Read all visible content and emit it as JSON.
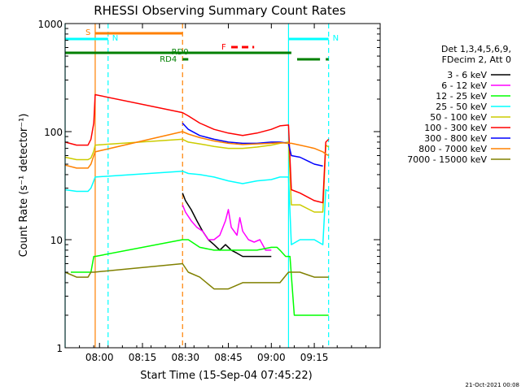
{
  "chart_data": {
    "type": "line",
    "title": "RHESSI Observing Summary Count Rates",
    "xlabel": "Start Time (15-Sep-04 07:45:22)",
    "ylabel": "Count Rate (s⁻¹ detector⁻¹)",
    "yscale": "log",
    "ylim": [
      1,
      1000
    ],
    "xlim_minutes": [
      -12,
      98
    ],
    "x_ticks": [
      {
        "label": "08:00",
        "minutes": 0
      },
      {
        "label": "08:15",
        "minutes": 15
      },
      {
        "label": "08:30",
        "minutes": 30
      },
      {
        "label": "08:45",
        "minutes": 45
      },
      {
        "label": "09:00",
        "minutes": 60
      },
      {
        "label": "09:15",
        "minutes": 75
      }
    ],
    "y_ticks": [
      {
        "label": "1",
        "value": 1
      },
      {
        "label": "10",
        "value": 10
      },
      {
        "label": "100",
        "value": 100
      },
      {
        "label": "1000",
        "value": 1000
      }
    ],
    "legend_header": [
      "Det 1,3,4,5,6,9,",
      "FDecim 2, Att 0"
    ],
    "legend_position": "right",
    "series": [
      {
        "name": "3 - 6 keV",
        "color": "#000000",
        "points": [
          [
            29,
            27
          ],
          [
            30,
            23
          ],
          [
            32,
            19
          ],
          [
            34,
            15
          ],
          [
            36,
            12
          ],
          [
            38,
            10
          ],
          [
            40,
            9
          ],
          [
            42,
            8
          ],
          [
            44,
            9
          ],
          [
            46,
            8
          ],
          [
            48,
            7.5
          ],
          [
            50,
            7
          ],
          [
            52,
            7
          ],
          [
            55,
            7
          ],
          [
            58,
            7
          ],
          [
            60,
            7
          ]
        ]
      },
      {
        "name": "6 - 12 keV",
        "color": "#ff00ff",
        "points": [
          [
            29,
            21
          ],
          [
            30,
            18
          ],
          [
            32,
            15
          ],
          [
            34,
            13
          ],
          [
            36,
            12
          ],
          [
            38,
            10
          ],
          [
            40,
            10
          ],
          [
            42,
            11
          ],
          [
            44,
            15
          ],
          [
            45,
            19
          ],
          [
            46,
            13
          ],
          [
            48,
            11
          ],
          [
            49,
            16
          ],
          [
            50,
            12
          ],
          [
            52,
            10
          ],
          [
            54,
            9.5
          ],
          [
            56,
            10
          ],
          [
            58,
            8
          ],
          [
            60,
            8
          ]
        ]
      },
      {
        "name": "12 - 25 keV",
        "color": "#00ff00",
        "points": [
          [
            -10,
            5
          ],
          [
            -5,
            5
          ],
          [
            -3,
            5
          ],
          [
            -2,
            7
          ],
          [
            -1.5,
            7
          ],
          [
            29,
            10
          ],
          [
            31,
            10
          ],
          [
            35,
            8.5
          ],
          [
            40,
            8
          ],
          [
            45,
            8
          ],
          [
            50,
            8
          ],
          [
            55,
            8
          ],
          [
            60,
            8.5
          ],
          [
            62,
            8.5
          ],
          [
            63,
            8
          ],
          [
            65,
            7
          ],
          [
            66.5,
            7
          ],
          [
            68,
            2
          ],
          [
            72,
            2
          ],
          [
            77,
            2
          ],
          [
            80,
            2
          ]
        ]
      },
      {
        "name": "25 - 50 keV",
        "color": "#00ffff",
        "points": [
          [
            -12,
            29
          ],
          [
            -8,
            28
          ],
          [
            -4,
            28
          ],
          [
            -3,
            30
          ],
          [
            -2,
            35
          ],
          [
            -1.5,
            38
          ],
          [
            29,
            43
          ],
          [
            31,
            41
          ],
          [
            35,
            40
          ],
          [
            40,
            38
          ],
          [
            45,
            35
          ],
          [
            50,
            33
          ],
          [
            55,
            35
          ],
          [
            60,
            36
          ],
          [
            63,
            38
          ],
          [
            66,
            38
          ],
          [
            67,
            9
          ],
          [
            70,
            10
          ],
          [
            75,
            10
          ],
          [
            78,
            9
          ],
          [
            79,
            29
          ],
          [
            80,
            28
          ]
        ]
      },
      {
        "name": "50 - 100 keV",
        "color": "#cccc00",
        "points": [
          [
            -12,
            58
          ],
          [
            -8,
            55
          ],
          [
            -4,
            55
          ],
          [
            -3,
            57
          ],
          [
            -2,
            66
          ],
          [
            -1.5,
            75
          ],
          [
            29,
            85
          ],
          [
            31,
            80
          ],
          [
            35,
            77
          ],
          [
            40,
            73
          ],
          [
            45,
            70
          ],
          [
            50,
            70
          ],
          [
            55,
            72
          ],
          [
            60,
            75
          ],
          [
            63,
            78
          ],
          [
            66,
            80
          ],
          [
            67,
            21
          ],
          [
            70,
            21
          ],
          [
            75,
            18
          ],
          [
            78,
            18
          ],
          [
            79,
            75
          ],
          [
            80,
            72
          ]
        ]
      },
      {
        "name": "100 - 300 keV",
        "color": "#ff0000",
        "points": [
          [
            -12,
            80
          ],
          [
            -8,
            75
          ],
          [
            -4,
            75
          ],
          [
            -3,
            85
          ],
          [
            -2,
            120
          ],
          [
            -1.5,
            220
          ],
          [
            29,
            150
          ],
          [
            31,
            140
          ],
          [
            35,
            120
          ],
          [
            40,
            105
          ],
          [
            45,
            97
          ],
          [
            50,
            92
          ],
          [
            55,
            97
          ],
          [
            60,
            105
          ],
          [
            63,
            113
          ],
          [
            66,
            115
          ],
          [
            67,
            29
          ],
          [
            70,
            27
          ],
          [
            75,
            23
          ],
          [
            78,
            22
          ],
          [
            79,
            80
          ],
          [
            80,
            85
          ]
        ]
      },
      {
        "name": "300 - 800 keV",
        "color": "#0000ff",
        "points": [
          [
            29,
            120
          ],
          [
            31,
            105
          ],
          [
            35,
            92
          ],
          [
            40,
            85
          ],
          [
            45,
            80
          ],
          [
            50,
            78
          ],
          [
            55,
            78
          ],
          [
            60,
            80
          ],
          [
            63,
            80
          ],
          [
            66,
            78
          ],
          [
            67,
            60
          ],
          [
            70,
            58
          ],
          [
            75,
            50
          ],
          [
            78,
            48
          ]
        ]
      },
      {
        "name": "800 - 7000 keV",
        "color": "#ff8000",
        "points": [
          [
            -12,
            49
          ],
          [
            -8,
            46
          ],
          [
            -4,
            46
          ],
          [
            -3,
            50
          ],
          [
            -2,
            60
          ],
          [
            -1.5,
            65
          ],
          [
            29,
            100
          ],
          [
            31,
            95
          ],
          [
            35,
            88
          ],
          [
            40,
            82
          ],
          [
            45,
            78
          ],
          [
            50,
            76
          ],
          [
            55,
            77
          ],
          [
            60,
            78
          ],
          [
            63,
            79
          ],
          [
            66,
            78
          ],
          [
            67,
            78
          ],
          [
            70,
            75
          ],
          [
            75,
            70
          ],
          [
            78,
            65
          ],
          [
            79,
            62
          ],
          [
            80,
            60
          ]
        ]
      },
      {
        "name": "7000 - 15000 keV",
        "color": "#808000",
        "points": [
          [
            -12,
            5
          ],
          [
            -8,
            4.5
          ],
          [
            -4,
            4.5
          ],
          [
            -3,
            5
          ],
          [
            -2,
            5
          ],
          [
            29,
            6
          ],
          [
            31,
            5
          ],
          [
            35,
            4.5
          ],
          [
            40,
            3.5
          ],
          [
            45,
            3.5
          ],
          [
            50,
            4
          ],
          [
            55,
            4
          ],
          [
            60,
            4
          ],
          [
            63,
            4
          ],
          [
            66,
            5
          ],
          [
            67,
            5
          ],
          [
            70,
            5
          ],
          [
            75,
            4.5
          ],
          [
            78,
            4.5
          ],
          [
            80,
            4.5
          ]
        ]
      }
    ],
    "state_bars": [
      {
        "label": "S",
        "color": "#ff8000",
        "start": -1.5,
        "end": 29
      },
      {
        "label": "N",
        "color": "#00ffff",
        "start": -12,
        "end": 3
      },
      {
        "label": "N",
        "color": "#00ffff",
        "start": 66,
        "end": 80
      },
      {
        "label": "F",
        "color": "#ff0000",
        "start": 46,
        "end": 54,
        "dashed": true
      },
      {
        "label": "RD0",
        "color": "#008000",
        "start": -12,
        "end": 67
      },
      {
        "label": "RD4",
        "color": "#008000",
        "start": 29,
        "end": 31
      },
      {
        "label": "",
        "color": "#008000",
        "start": 69,
        "end": 77
      },
      {
        "label": "",
        "color": "#008000",
        "start": 79,
        "end": 80
      }
    ],
    "vertical_markers": [
      {
        "color": "#00ffff",
        "minutes": -12,
        "style": "solid"
      },
      {
        "color": "#ff8000",
        "minutes": -1.5,
        "style": "solid"
      },
      {
        "color": "#00ffff",
        "minutes": 3,
        "style": "dashed"
      },
      {
        "color": "#ff8000",
        "minutes": 29,
        "style": "dashed"
      },
      {
        "color": "#00ffff",
        "minutes": 66,
        "style": "solid"
      },
      {
        "color": "#00ffff",
        "minutes": 80,
        "style": "dashed"
      }
    ],
    "grid": false
  },
  "footer_stamp": "21-Oct-2021 00:08"
}
